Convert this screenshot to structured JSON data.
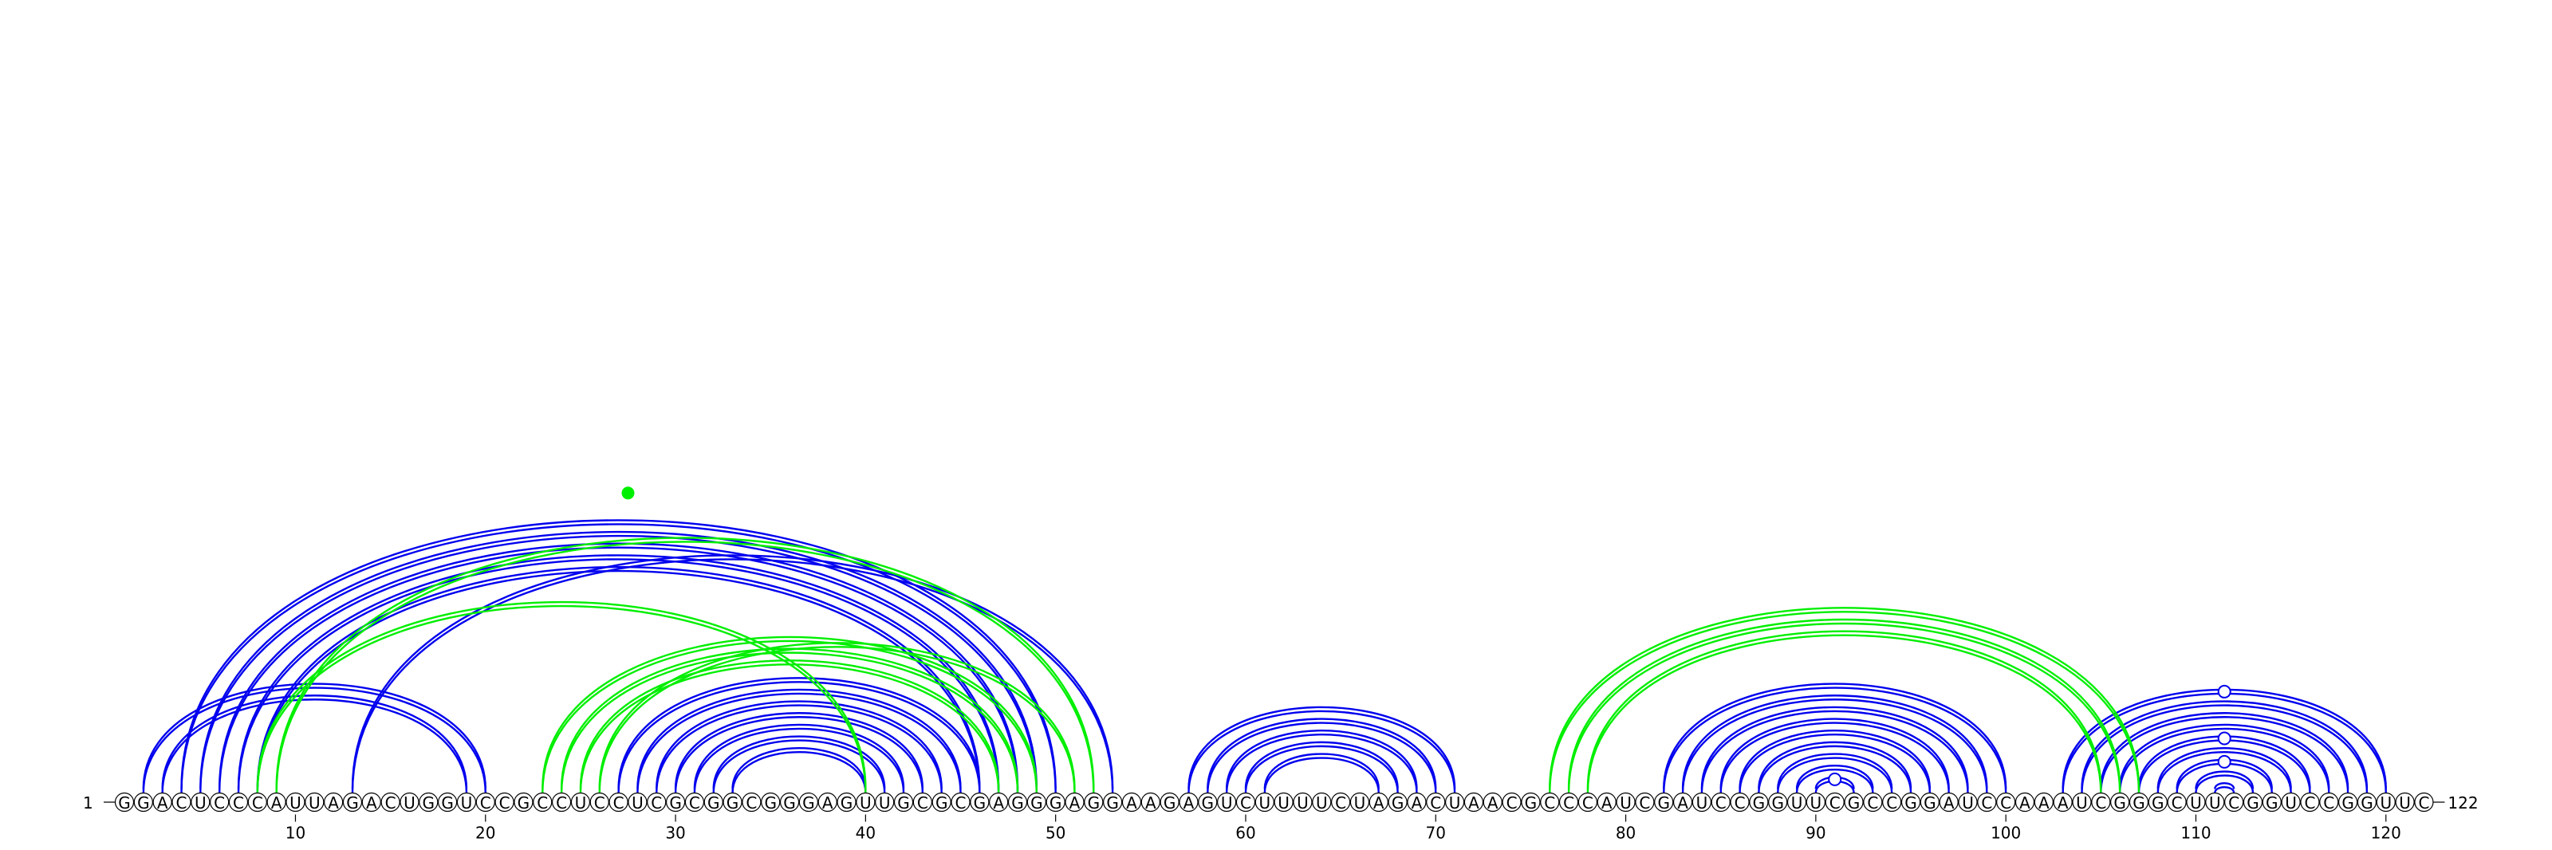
{
  "sequence": "GGACUCCCAUUAGACUGGUCCGCCUCCUCGCGGCGGGAGUUGCGCGAGGGAGGAAGAGUCUUUUCUAGACUAACGCCCAUCGAUCCGGUUCGCCGGAUCCAAAUCGGGCUUCGGUCCGGUUC",
  "start_label": "1",
  "end_label": "122",
  "tick_labels": [
    "10",
    "20",
    "30",
    "40",
    "50",
    "60",
    "70",
    "80",
    "90",
    "100",
    "110",
    "120"
  ],
  "colors": {
    "blue": "#0000ee",
    "green": "#00ee00",
    "node": "#ffffff"
  },
  "pair_sets": [
    {
      "color": "blue",
      "pairs": [
        [
          2,
          20
        ],
        [
          3,
          19
        ],
        [
          4,
          50
        ],
        [
          5,
          49
        ],
        [
          6,
          48
        ],
        [
          7,
          47
        ],
        [
          8,
          46
        ],
        [
          13,
          53
        ],
        [
          27,
          46
        ],
        [
          28,
          45
        ],
        [
          29,
          44
        ],
        [
          30,
          43
        ],
        [
          31,
          42
        ],
        [
          32,
          41
        ],
        [
          33,
          40
        ],
        [
          57,
          71
        ],
        [
          58,
          70
        ],
        [
          59,
          69
        ],
        [
          60,
          68
        ],
        [
          61,
          67
        ],
        [
          82,
          100
        ],
        [
          83,
          99
        ],
        [
          84,
          98
        ],
        [
          85,
          97
        ],
        [
          86,
          96
        ],
        [
          87,
          95
        ],
        [
          88,
          94
        ],
        [
          89,
          93
        ],
        [
          90,
          92
        ],
        [
          103,
          120
        ],
        [
          104,
          119
        ],
        [
          105,
          118
        ],
        [
          106,
          117
        ],
        [
          107,
          116
        ],
        [
          108,
          115
        ],
        [
          109,
          114
        ],
        [
          110,
          113
        ],
        [
          111,
          112
        ]
      ]
    },
    {
      "color": "green",
      "pairs": [
        [
          8,
          40
        ],
        [
          9,
          52
        ],
        [
          23,
          49
        ],
        [
          24,
          48
        ],
        [
          25,
          47
        ],
        [
          26,
          51
        ],
        [
          76,
          107
        ],
        [
          77,
          106
        ],
        [
          78,
          105
        ]
      ]
    }
  ],
  "markers": [
    {
      "position": 28,
      "apex_of": [
        2,
        53
      ],
      "style": "filled",
      "color": "green"
    },
    {
      "position": 91,
      "apex_of": [
        90,
        92
      ],
      "style": "open"
    },
    {
      "position": 111,
      "apex_of": [
        103,
        120
      ],
      "style": "open"
    },
    {
      "position": 111,
      "apex_of": [
        107,
        116
      ],
      "style": "open"
    },
    {
      "position": 111,
      "apex_of": [
        109,
        114
      ],
      "style": "open"
    }
  ]
}
